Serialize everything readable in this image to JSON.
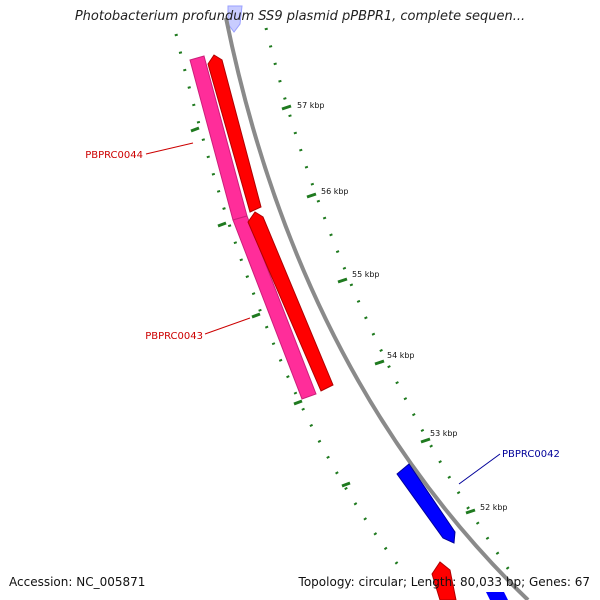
{
  "title": "Photobacterium profundum SS9 plasmid pPBPR1, complete sequen...",
  "accession": "Accession: NC_005871",
  "summary": "Topology: circular; Length: 80,033 bp; Genes: 67",
  "scale_labels": [
    "57 kbp",
    "56 kbp",
    "55 kbp",
    "54 kbp",
    "53 kbp",
    "52 kbp"
  ],
  "genes": [
    {
      "name": "PBPRC0044",
      "color": "#cc0000"
    },
    {
      "name": "PBPRC0043",
      "color": "#cc0000"
    },
    {
      "name": "PBPRC0042",
      "color": "#000099"
    }
  ],
  "colors": {
    "forward_cds": "#ff0000",
    "paired_feature": "#ff2d9a",
    "reverse_cds": "#0000ff",
    "backbone": "#8a8a8a",
    "ticks": "#1f7a1f"
  }
}
